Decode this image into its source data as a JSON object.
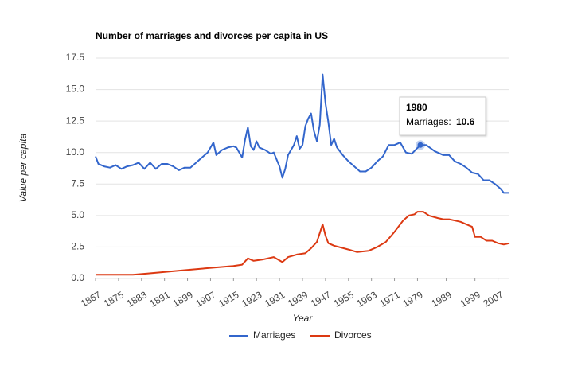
{
  "chart_data": {
    "type": "line",
    "title": "Number of marriages and divorces per capita in US",
    "x_label": "Year",
    "y_label": "Value per capita",
    "xlim": [
      1867,
      2011
    ],
    "xticks": [
      1867,
      1875,
      1883,
      1891,
      1899,
      1907,
      1915,
      1923,
      1931,
      1939,
      1947,
      1955,
      1963,
      1971,
      1979,
      1989,
      1999,
      2007
    ],
    "ylim": [
      0,
      17.5
    ],
    "yticks": [
      {
        "value": 0,
        "label": "0.0"
      },
      2.5,
      {
        "value": 5,
        "label": "5.0"
      },
      7.5,
      {
        "value": 10,
        "label": "10.0"
      },
      12.5,
      {
        "value": 15,
        "label": "15.0"
      },
      17.5
    ],
    "grid": true,
    "legend": "bottom",
    "series": [
      {
        "name": "Marriages",
        "color": "#3366cc",
        "x": [
          1867,
          1868,
          1870,
          1872,
          1874,
          1876,
          1878,
          1880,
          1882,
          1884,
          1886,
          1888,
          1890,
          1892,
          1894,
          1896,
          1898,
          1900,
          1902,
          1904,
          1906,
          1908,
          1909,
          1911,
          1913,
          1915,
          1916,
          1918,
          1919,
          1920,
          1921,
          1922,
          1923,
          1924,
          1926,
          1928,
          1929,
          1931,
          1932,
          1933,
          1934,
          1935,
          1936,
          1937,
          1938,
          1939,
          1940,
          1941,
          1942,
          1943,
          1944,
          1945,
          1946,
          1947,
          1948,
          1949,
          1950,
          1951,
          1953,
          1955,
          1957,
          1959,
          1961,
          1963,
          1965,
          1967,
          1969,
          1971,
          1973,
          1975,
          1977,
          1980,
          1982,
          1985,
          1988,
          1990,
          1992,
          1994,
          1996,
          1998,
          2000,
          2002,
          2004,
          2006,
          2008,
          2009,
          2011
        ],
        "values": [
          9.7,
          9.1,
          8.9,
          8.8,
          9.0,
          8.7,
          8.9,
          9.0,
          9.2,
          8.7,
          9.2,
          8.7,
          9.1,
          9.1,
          8.9,
          8.6,
          8.8,
          8.8,
          9.2,
          9.6,
          10.0,
          10.8,
          9.8,
          10.2,
          10.4,
          10.5,
          10.4,
          9.6,
          11.0,
          12.0,
          10.5,
          10.2,
          10.9,
          10.4,
          10.2,
          9.9,
          10.0,
          8.9,
          8.0,
          8.7,
          9.8,
          10.2,
          10.6,
          11.3,
          10.3,
          10.6,
          12.1,
          12.7,
          13.1,
          11.7,
          10.9,
          12.2,
          16.2,
          13.9,
          12.4,
          10.6,
          11.1,
          10.4,
          9.8,
          9.3,
          8.9,
          8.5,
          8.5,
          8.8,
          9.3,
          9.7,
          10.6,
          10.6,
          10.8,
          10.0,
          9.9,
          10.6,
          10.6,
          10.1,
          9.8,
          9.8,
          9.3,
          9.1,
          8.8,
          8.4,
          8.3,
          7.8,
          7.8,
          7.5,
          7.1,
          6.8,
          6.8
        ]
      },
      {
        "name": "Divorces",
        "color": "#dc3912",
        "x": [
          1867,
          1880,
          1885,
          1890,
          1895,
          1900,
          1905,
          1910,
          1915,
          1918,
          1920,
          1922,
          1925,
          1929,
          1932,
          1934,
          1937,
          1940,
          1942,
          1944,
          1946,
          1947,
          1948,
          1950,
          1955,
          1958,
          1962,
          1965,
          1968,
          1971,
          1974,
          1976,
          1978,
          1979,
          1981,
          1983,
          1986,
          1988,
          1990,
          1992,
          1994,
          1996,
          1998,
          1999,
          2001,
          2003,
          2005,
          2007,
          2009,
          2011
        ],
        "values": [
          0.3,
          0.3,
          0.4,
          0.5,
          0.6,
          0.7,
          0.8,
          0.9,
          1.0,
          1.1,
          1.6,
          1.4,
          1.5,
          1.7,
          1.3,
          1.7,
          1.9,
          2.0,
          2.4,
          2.9,
          4.3,
          3.4,
          2.8,
          2.6,
          2.3,
          2.1,
          2.2,
          2.5,
          2.9,
          3.7,
          4.6,
          5.0,
          5.1,
          5.3,
          5.3,
          5.0,
          4.8,
          4.7,
          4.7,
          4.6,
          4.5,
          4.3,
          4.1,
          3.3,
          3.3,
          3.0,
          3.0,
          2.8,
          2.7,
          2.8
        ]
      }
    ],
    "tooltip": {
      "x": 1980,
      "label": "Marriages:",
      "value": 10.6
    }
  }
}
